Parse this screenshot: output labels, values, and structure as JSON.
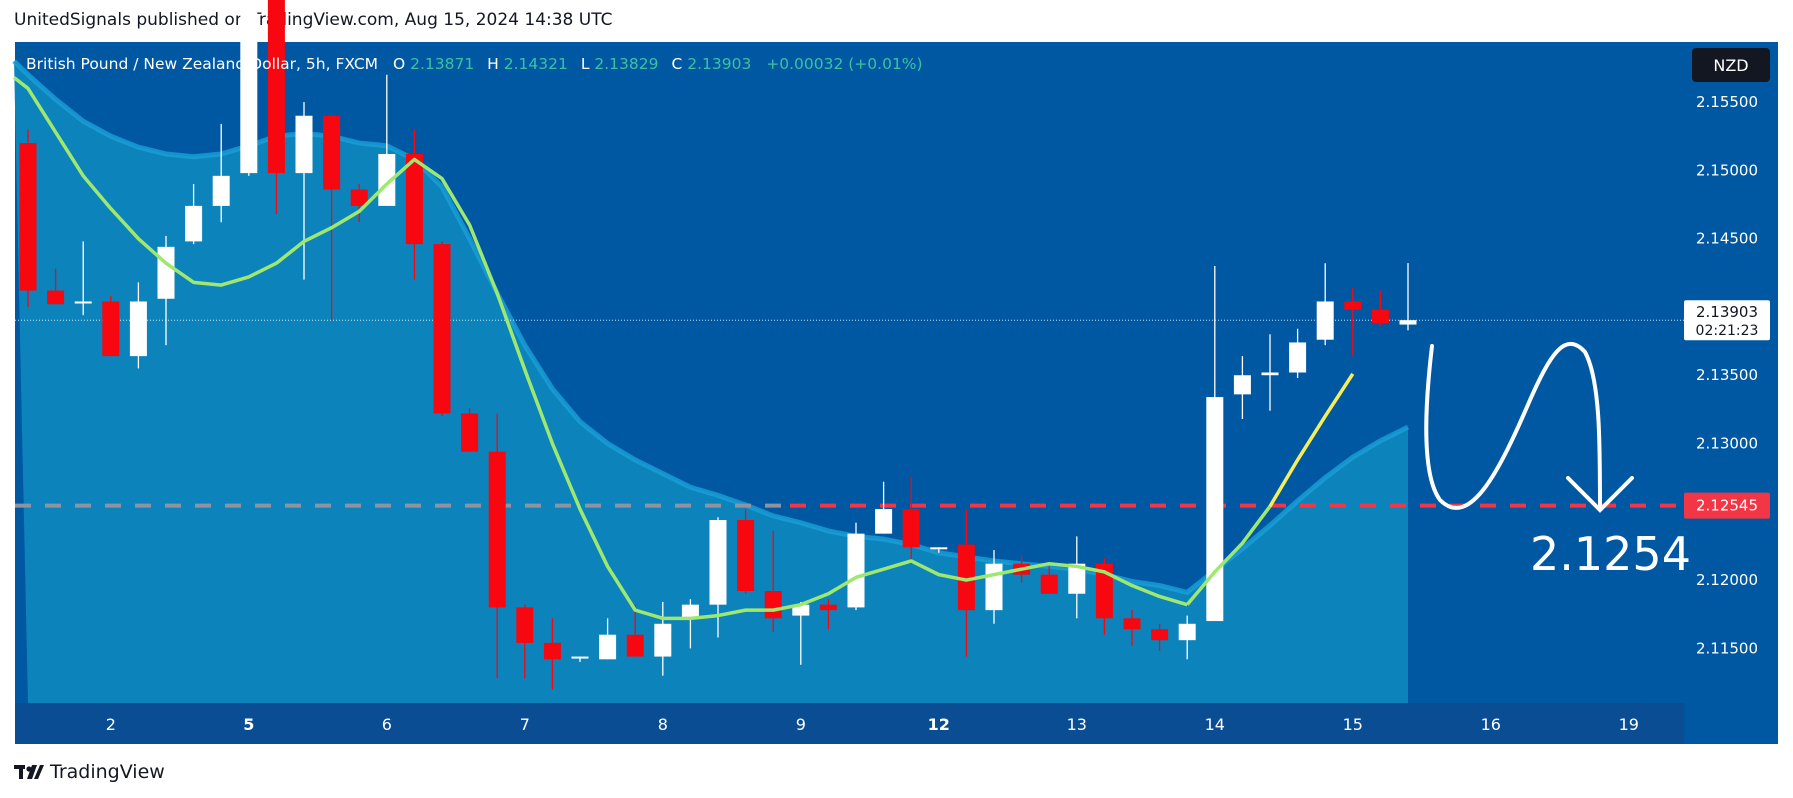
{
  "header": {
    "published_line": "UnitedSignals published on TradingView.com, Aug 15, 2024 14:38 UTC"
  },
  "legend": {
    "symbol": "British Pound / New Zealand Dollar, 5h, FXCM",
    "o_label": "O",
    "o_value": "2.13871",
    "h_label": "H",
    "h_value": "2.14321",
    "l_label": "L",
    "l_value": "2.13829",
    "c_label": "C",
    "c_value": "2.13903",
    "change": "+0.00032 (+0.01%)"
  },
  "currency_badge": "NZD",
  "last_price": {
    "value": "2.13903",
    "countdown": "02:21:23"
  },
  "level_price": "2.12545",
  "annotation_text": "2.1254",
  "footer": {
    "brand": "TradingView"
  },
  "colors": {
    "background": "#0058a3",
    "area_fill": "#0e86bd",
    "area_line": "#1aa0d8",
    "ma_line": "#9fe870",
    "ma_line_recent": "#f5ed5a",
    "bull": "#ffffff",
    "bear": "#f7070f",
    "level_line": "#f23645",
    "level_line_past": "#8f93a0",
    "axis_text": "#ffffff"
  },
  "chart_data": {
    "type": "candlestick",
    "timeframe": "5h",
    "y_ticks": [
      2.115,
      2.12,
      2.125,
      2.13,
      2.135,
      2.14,
      2.145,
      2.15,
      2.155
    ],
    "y_tick_labels": [
      "2.11500",
      "2.12000",
      "2.12500",
      "2.13000",
      "2.13500",
      "2.14000",
      "2.14500",
      "2.15000",
      "2.15500"
    ],
    "ylim": [
      2.111,
      2.1594
    ],
    "x_ticks": [
      {
        "label": "2",
        "index": 3,
        "bold": false
      },
      {
        "label": "5",
        "index": 8,
        "bold": true
      },
      {
        "label": "6",
        "index": 13,
        "bold": false
      },
      {
        "label": "7",
        "index": 18,
        "bold": false
      },
      {
        "label": "8",
        "index": 23,
        "bold": false
      },
      {
        "label": "9",
        "index": 28,
        "bold": false
      },
      {
        "label": "12",
        "index": 33,
        "bold": true
      },
      {
        "label": "13",
        "index": 38,
        "bold": false
      },
      {
        "label": "14",
        "index": 43,
        "bold": false
      },
      {
        "label": "15",
        "index": 48,
        "bold": false
      },
      {
        "label": "16",
        "index": 53,
        "bold": false
      },
      {
        "label": "19",
        "index": 58,
        "bold": false
      }
    ],
    "candles": [
      {
        "o": 2.152,
        "h": 2.153,
        "l": 2.14,
        "c": 2.1412
      },
      {
        "o": 2.1412,
        "h": 2.1428,
        "l": 2.1402,
        "c": 2.1402
      },
      {
        "o": 2.1404,
        "h": 2.1448,
        "l": 2.1394,
        "c": 2.1404
      },
      {
        "o": 2.1404,
        "h": 2.1408,
        "l": 2.1364,
        "c": 2.1364
      },
      {
        "o": 2.1364,
        "h": 2.1418,
        "l": 2.1355,
        "c": 2.1404
      },
      {
        "o": 2.1406,
        "h": 2.1452,
        "l": 2.1372,
        "c": 2.1444
      },
      {
        "o": 2.1448,
        "h": 2.149,
        "l": 2.1446,
        "c": 2.1474
      },
      {
        "o": 2.1474,
        "h": 2.1534,
        "l": 2.1462,
        "c": 2.1496
      },
      {
        "o": 2.1498,
        "h": 2.164,
        "l": 2.1496,
        "c": 2.162
      },
      {
        "o": 2.1626,
        "h": 2.164,
        "l": 2.1468,
        "c": 2.1498
      },
      {
        "o": 2.1498,
        "h": 2.155,
        "l": 2.142,
        "c": 2.154
      },
      {
        "o": 2.154,
        "h": 2.154,
        "l": 2.139,
        "c": 2.1486
      },
      {
        "o": 2.1486,
        "h": 2.149,
        "l": 2.1462,
        "c": 2.1474
      },
      {
        "o": 2.1474,
        "h": 2.157,
        "l": 2.1474,
        "c": 2.1512
      },
      {
        "o": 2.1512,
        "h": 2.153,
        "l": 2.142,
        "c": 2.1446
      },
      {
        "o": 2.1446,
        "h": 2.1448,
        "l": 2.132,
        "c": 2.1322
      },
      {
        "o": 2.1322,
        "h": 2.1326,
        "l": 2.1294,
        "c": 2.1294
      },
      {
        "o": 2.1294,
        "h": 2.1322,
        "l": 2.1128,
        "c": 2.118
      },
      {
        "o": 2.118,
        "h": 2.1182,
        "l": 2.1128,
        "c": 2.1154
      },
      {
        "o": 2.1154,
        "h": 2.1172,
        "l": 2.112,
        "c": 2.1142
      },
      {
        "o": 2.1144,
        "h": 2.1144,
        "l": 2.114,
        "c": 2.1144
      },
      {
        "o": 2.1142,
        "h": 2.1172,
        "l": 2.1142,
        "c": 2.116
      },
      {
        "o": 2.116,
        "h": 2.1182,
        "l": 2.1144,
        "c": 2.1144
      },
      {
        "o": 2.1144,
        "h": 2.1184,
        "l": 2.113,
        "c": 2.1168
      },
      {
        "o": 2.1172,
        "h": 2.1186,
        "l": 2.115,
        "c": 2.1182
      },
      {
        "o": 2.1182,
        "h": 2.1246,
        "l": 2.1158,
        "c": 2.1244
      },
      {
        "o": 2.1244,
        "h": 2.1252,
        "l": 2.119,
        "c": 2.1192
      },
      {
        "o": 2.1192,
        "h": 2.1236,
        "l": 2.1162,
        "c": 2.1172
      },
      {
        "o": 2.1174,
        "h": 2.1184,
        "l": 2.1138,
        "c": 2.1182
      },
      {
        "o": 2.1182,
        "h": 2.1186,
        "l": 2.1164,
        "c": 2.1178
      },
      {
        "o": 2.118,
        "h": 2.1242,
        "l": 2.1178,
        "c": 2.1234
      },
      {
        "o": 2.1234,
        "h": 2.1272,
        "l": 2.1234,
        "c": 2.1252
      },
      {
        "o": 2.1252,
        "h": 2.1276,
        "l": 2.1212,
        "c": 2.1224
      },
      {
        "o": 2.1224,
        "h": 2.1224,
        "l": 2.122,
        "c": 2.1224
      },
      {
        "o": 2.1226,
        "h": 2.1252,
        "l": 2.1144,
        "c": 2.1178
      },
      {
        "o": 2.1178,
        "h": 2.1222,
        "l": 2.1168,
        "c": 2.1212
      },
      {
        "o": 2.1212,
        "h": 2.1218,
        "l": 2.1198,
        "c": 2.1204
      },
      {
        "o": 2.1204,
        "h": 2.121,
        "l": 2.119,
        "c": 2.119
      },
      {
        "o": 2.119,
        "h": 2.1232,
        "l": 2.1172,
        "c": 2.1212
      },
      {
        "o": 2.1212,
        "h": 2.1216,
        "l": 2.116,
        "c": 2.1172
      },
      {
        "o": 2.1172,
        "h": 2.1178,
        "l": 2.1152,
        "c": 2.1164
      },
      {
        "o": 2.1164,
        "h": 2.1168,
        "l": 2.1148,
        "c": 2.1156
      },
      {
        "o": 2.1156,
        "h": 2.1174,
        "l": 2.1142,
        "c": 2.1168
      },
      {
        "o": 2.117,
        "h": 2.143,
        "l": 2.117,
        "c": 2.1334
      },
      {
        "o": 2.1336,
        "h": 2.1364,
        "l": 2.1318,
        "c": 2.135
      },
      {
        "o": 2.135,
        "h": 2.138,
        "l": 2.1324,
        "c": 2.1352
      },
      {
        "o": 2.1352,
        "h": 2.1384,
        "l": 2.1348,
        "c": 2.1374
      },
      {
        "o": 2.1376,
        "h": 2.1432,
        "l": 2.1372,
        "c": 2.1404
      },
      {
        "o": 2.1404,
        "h": 2.1414,
        "l": 2.1364,
        "c": 2.1398
      },
      {
        "o": 2.1398,
        "h": 2.1412,
        "l": 2.1386,
        "c": 2.1388
      },
      {
        "o": 2.13871,
        "h": 2.14321,
        "l": 2.13829,
        "c": 2.13903
      }
    ],
    "area_line": [
      2.157,
      2.1552,
      2.1536,
      2.1525,
      2.1517,
      2.1512,
      2.151,
      2.1512,
      2.1518,
      2.1525,
      2.1527,
      2.1525,
      2.152,
      2.1518,
      2.1508,
      2.1488,
      2.145,
      2.141,
      2.1372,
      2.134,
      2.1316,
      2.13,
      2.1288,
      2.1278,
      2.1268,
      2.1262,
      2.1255,
      2.1247,
      2.1242,
      2.1236,
      2.1232,
      2.123,
      2.1226,
      2.122,
      2.1217,
      2.1214,
      2.1212,
      2.121,
      2.1208,
      2.1204,
      2.1199,
      2.1196,
      2.1191,
      2.1207,
      2.1223,
      2.124,
      2.1258,
      2.1275,
      2.129,
      2.1302,
      2.1312
    ],
    "ma_line": [
      2.156,
      2.1528,
      2.1496,
      2.1472,
      2.145,
      2.1432,
      2.1418,
      2.1416,
      2.1422,
      2.1432,
      2.1448,
      2.1458,
      2.147,
      2.149,
      2.1508,
      2.1494,
      2.146,
      2.141,
      2.1354,
      2.13,
      2.1252,
      2.121,
      2.1178,
      2.1172,
      2.1172,
      2.1174,
      2.1178,
      2.1178,
      2.1182,
      2.119,
      2.1202,
      2.1208,
      2.1214,
      2.1204,
      2.12,
      2.1204,
      2.1208,
      2.1212,
      2.121,
      2.1206,
      2.1196,
      2.1188,
      2.1182,
      2.1206,
      2.1227,
      2.1254,
      2.1288,
      2.132,
      2.1351
    ],
    "horizontal_level": 2.12545,
    "last_price": 2.13903
  }
}
